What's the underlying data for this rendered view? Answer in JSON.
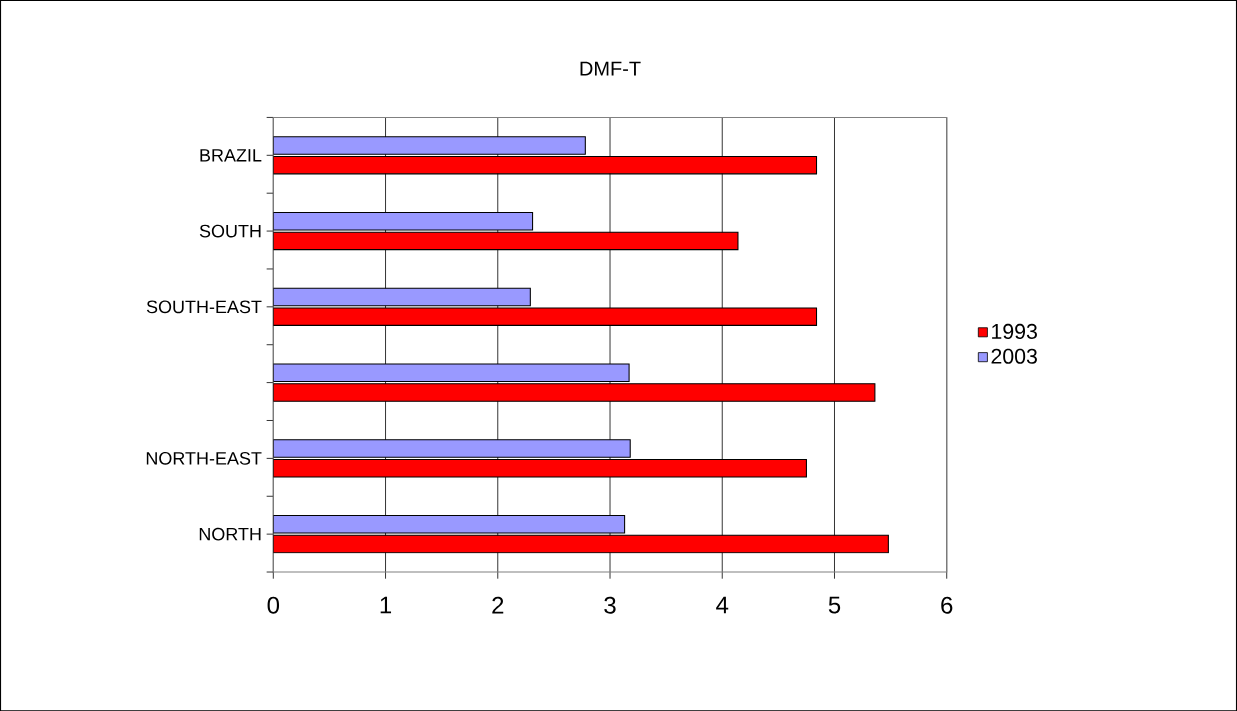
{
  "chart_data": {
    "type": "bar",
    "orientation": "horizontal",
    "title": "DMF-T",
    "categories": [
      "BRAZIL",
      "SOUTH",
      "SOUTH-EAST",
      null,
      "NORTH-EAST",
      "NORTH"
    ],
    "series": [
      {
        "name": "1993",
        "color": "#ff0000",
        "values": [
          4.84,
          4.14,
          4.84,
          5.36,
          4.75,
          5.48
        ]
      },
      {
        "name": "2003",
        "color": "#9999ff",
        "values": [
          2.78,
          2.31,
          2.29,
          3.17,
          3.18,
          3.13
        ]
      }
    ],
    "xlim": [
      0,
      6
    ],
    "xticks": [
      0,
      1,
      2,
      3,
      4,
      5,
      6
    ],
    "grid": "x",
    "legend": "right"
  }
}
